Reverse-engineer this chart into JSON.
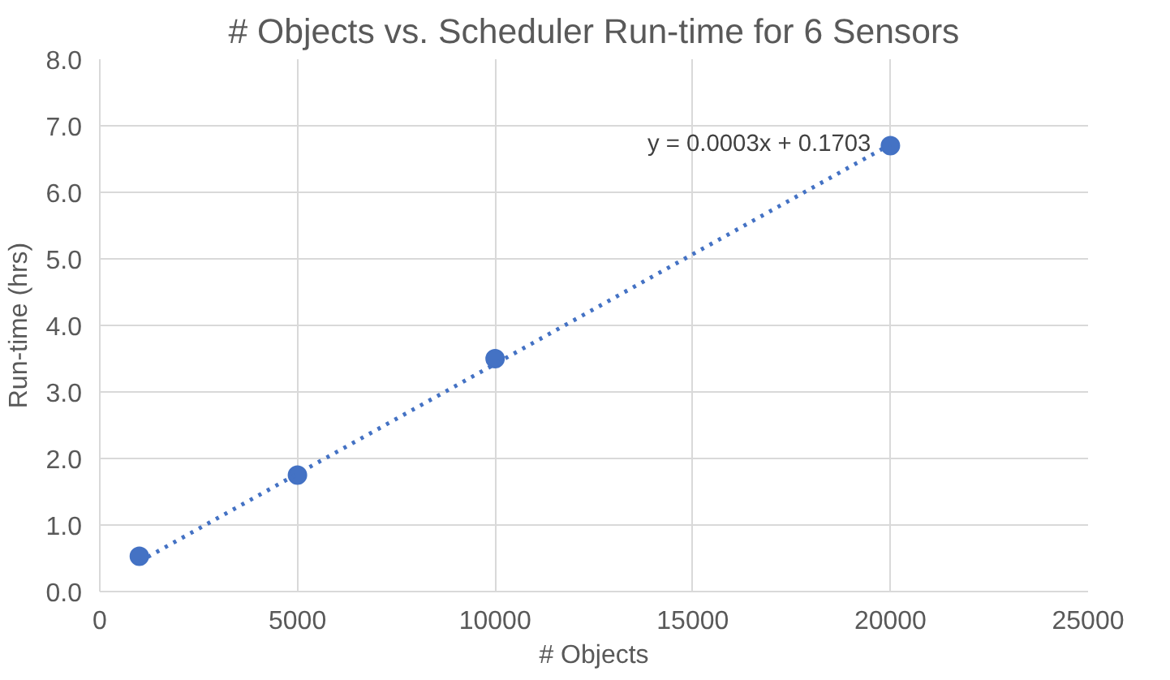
{
  "chart_data": {
    "type": "scatter",
    "title": "# Objects vs. Scheduler Run-time for 6 Sensors",
    "xlabel": "# Objects",
    "ylabel": "Run-time (hrs)",
    "series": [
      {
        "color": "#4472c4",
        "marker": "circle",
        "x": [
          1000,
          5000,
          10000,
          20000
        ],
        "values": [
          0.53,
          1.75,
          3.5,
          6.7
        ]
      },
      {
        "type": "line",
        "color": "#4472c4",
        "line_style": "dotted",
        "marker": "none",
        "x": [
          1000,
          20000
        ],
        "values": [
          0.45,
          6.72
        ]
      }
    ],
    "annotations": [
      "y = 0.0003x + 0.1703"
    ],
    "xlim": [
      0,
      25000
    ],
    "xticks": [
      0,
      5000,
      10000,
      15000,
      20000,
      25000
    ],
    "ylim": [
      0,
      8
    ],
    "yticks": [
      {
        "value": 0,
        "label": "0.0"
      },
      {
        "value": 1,
        "label": "1.0"
      },
      {
        "value": 2,
        "label": "2.0"
      },
      {
        "value": 3,
        "label": "3.0"
      },
      {
        "value": 4,
        "label": "4.0"
      },
      {
        "value": 5,
        "label": "5.0"
      },
      {
        "value": 6,
        "label": "6.0"
      },
      {
        "value": 7,
        "label": "7.0"
      },
      {
        "value": 8,
        "label": "8.0"
      }
    ],
    "grid": true
  }
}
